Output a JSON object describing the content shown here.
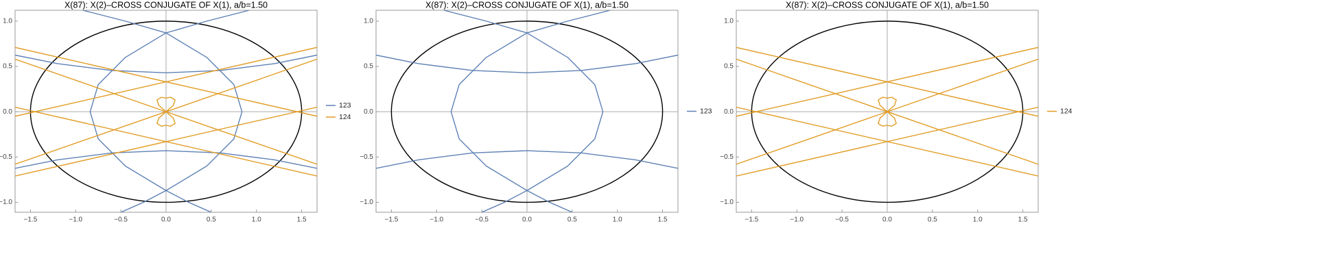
{
  "chart_data": [
    {
      "type": "curves",
      "title": "X(87): X(2)–CROSS CONJUGATE OF X(1), a/b=1.50",
      "xlim": [
        -1.67,
        1.67
      ],
      "ylim": [
        -1.11,
        1.12
      ],
      "xticks": [
        {
          "value": -1.5,
          "label": "−1.5"
        },
        {
          "value": -1,
          "label": "−1.0"
        },
        {
          "value": -0.5,
          "label": "−0.5"
        },
        {
          "value": 0,
          "label": "0.0"
        },
        0.5,
        {
          "value": 1,
          "label": "1.0"
        },
        1.5
      ],
      "yticks": [
        {
          "value": -1,
          "label": "−1.0"
        },
        {
          "value": -0.5,
          "label": "−0.5"
        },
        {
          "value": 0,
          "label": "0.0"
        },
        0.5,
        {
          "value": 1,
          "label": "1.0"
        }
      ],
      "ellipse": {
        "color": "#000000",
        "rx": 1.5,
        "ry": 1
      },
      "series": [
        {
          "name": "123",
          "color": "#5e81b5",
          "x": [
            -1.67,
            -1.2,
            -0.6,
            0,
            0.6,
            1.2,
            1.67,
            null,
            -1.67,
            -1.2,
            -0.6,
            0,
            0.6,
            1.2,
            1.67,
            null,
            -0.92,
            -0.45,
            0,
            0.45,
            0.75,
            0.84,
            0.75,
            0.45,
            0,
            0.25,
            0.5,
            null,
            0.92,
            0.45,
            0,
            -0.45,
            -0.75,
            -0.84,
            -0.75,
            -0.45,
            0,
            -0.25,
            -0.5
          ],
          "values": [
            0.625,
            0.531,
            0.455,
            0.43,
            0.455,
            0.531,
            0.625,
            null,
            -0.625,
            -0.531,
            -0.455,
            -0.43,
            -0.455,
            -0.531,
            -0.625,
            null,
            1.12,
            1.0,
            0.87,
            0.6,
            0.3,
            0,
            -0.3,
            -0.6,
            -0.87,
            -1.0,
            -1.11,
            null,
            1.12,
            1.0,
            0.87,
            0.6,
            0.3,
            0,
            -0.3,
            -0.6,
            -0.87,
            -1.0,
            -1.11
          ]
        },
        {
          "name": "124",
          "color": "#e19c24",
          "x": [
            -1.67,
            1.67,
            null,
            -1.67,
            1.67,
            null,
            -1.67,
            1.67,
            null,
            -1.67,
            1.67,
            null,
            -1.67,
            1.67,
            null,
            -1.67,
            1.67,
            null,
            0,
            -0.08,
            -0.1,
            -0.05,
            0,
            0.05,
            0.1,
            0.08,
            0,
            null,
            0,
            -0.08,
            -0.1,
            -0.05,
            0,
            0.05,
            0.1,
            0.08,
            0
          ],
          "values": [
            0.71,
            -0.05,
            null,
            -0.05,
            0.71,
            null,
            -0.71,
            0.05,
            null,
            0.05,
            -0.71,
            null,
            0.58,
            -0.58,
            null,
            -0.58,
            0.58,
            null,
            0,
            0.07,
            0.13,
            0.16,
            0.15,
            0.16,
            0.13,
            0.07,
            0,
            null,
            0,
            -0.07,
            -0.13,
            -0.16,
            -0.15,
            -0.16,
            -0.13,
            -0.07,
            0
          ]
        }
      ]
    },
    {
      "type": "curves",
      "title": "X(87): X(2)–CROSS CONJUGATE OF X(1), a/b=1.50",
      "xlim": [
        -1.67,
        1.67
      ],
      "ylim": [
        -1.11,
        1.12
      ],
      "xticks": [
        {
          "value": -1.5,
          "label": "−1.5"
        },
        {
          "value": -1,
          "label": "−1.0"
        },
        {
          "value": -0.5,
          "label": "−0.5"
        },
        {
          "value": 0,
          "label": "0.0"
        },
        0.5,
        {
          "value": 1,
          "label": "1.0"
        },
        1.5
      ],
      "yticks": [
        {
          "value": -1,
          "label": "−1.0"
        },
        {
          "value": -0.5,
          "label": "−0.5"
        },
        {
          "value": 0,
          "label": "0.0"
        },
        0.5,
        {
          "value": 1,
          "label": "1.0"
        }
      ],
      "ellipse": {
        "color": "#000000",
        "rx": 1.5,
        "ry": 1
      },
      "series": [
        {
          "name": "123",
          "color": "#5e81b5",
          "x": [
            -1.67,
            -1.2,
            -0.6,
            0,
            0.6,
            1.2,
            1.67,
            null,
            -1.67,
            -1.2,
            -0.6,
            0,
            0.6,
            1.2,
            1.67,
            null,
            -0.92,
            -0.45,
            0,
            0.45,
            0.75,
            0.84,
            0.75,
            0.45,
            0,
            0.25,
            0.5,
            null,
            0.92,
            0.45,
            0,
            -0.45,
            -0.75,
            -0.84,
            -0.75,
            -0.45,
            0,
            -0.25,
            -0.5
          ],
          "values": [
            0.625,
            0.531,
            0.455,
            0.43,
            0.455,
            0.531,
            0.625,
            null,
            -0.625,
            -0.531,
            -0.455,
            -0.43,
            -0.455,
            -0.531,
            -0.625,
            null,
            1.12,
            1.0,
            0.87,
            0.6,
            0.3,
            0,
            -0.3,
            -0.6,
            -0.87,
            -1.0,
            -1.11,
            null,
            1.12,
            1.0,
            0.87,
            0.6,
            0.3,
            0,
            -0.3,
            -0.6,
            -0.87,
            -1.0,
            -1.11
          ]
        }
      ]
    },
    {
      "type": "curves",
      "title": "X(87): X(2)–CROSS CONJUGATE OF X(1), a/b=1.50",
      "xlim": [
        -1.67,
        1.67
      ],
      "ylim": [
        -1.11,
        1.12
      ],
      "xticks": [
        {
          "value": -1.5,
          "label": "−1.5"
        },
        {
          "value": -1,
          "label": "−1.0"
        },
        {
          "value": -0.5,
          "label": "−0.5"
        },
        {
          "value": 0,
          "label": "0.0"
        },
        0.5,
        {
          "value": 1,
          "label": "1.0"
        },
        1.5
      ],
      "yticks": [
        {
          "value": -1,
          "label": "−1.0"
        },
        {
          "value": -0.5,
          "label": "−0.5"
        },
        {
          "value": 0,
          "label": "0.0"
        },
        0.5,
        {
          "value": 1,
          "label": "1.0"
        }
      ],
      "ellipse": {
        "color": "#000000",
        "rx": 1.5,
        "ry": 1
      },
      "series": [
        {
          "name": "124",
          "color": "#e19c24",
          "x": [
            -1.67,
            1.67,
            null,
            -1.67,
            1.67,
            null,
            -1.67,
            1.67,
            null,
            -1.67,
            1.67,
            null,
            -1.67,
            1.67,
            null,
            -1.67,
            1.67,
            null,
            0,
            -0.08,
            -0.1,
            -0.05,
            0,
            0.05,
            0.1,
            0.08,
            0,
            null,
            0,
            -0.08,
            -0.1,
            -0.05,
            0,
            0.05,
            0.1,
            0.08,
            0
          ],
          "values": [
            0.71,
            -0.05,
            null,
            -0.05,
            0.71,
            null,
            -0.71,
            0.05,
            null,
            0.05,
            -0.71,
            null,
            0.58,
            -0.58,
            null,
            -0.58,
            0.58,
            null,
            0,
            0.07,
            0.13,
            0.16,
            0.15,
            0.16,
            0.13,
            0.07,
            0,
            null,
            0,
            -0.07,
            -0.13,
            -0.16,
            -0.15,
            -0.16,
            -0.13,
            -0.07,
            0
          ]
        }
      ]
    }
  ]
}
